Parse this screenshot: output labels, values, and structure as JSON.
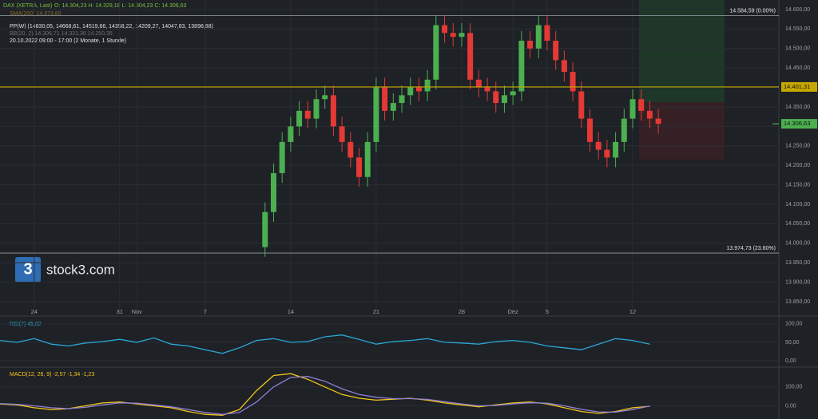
{
  "chart_data": [
    {
      "type": "candlestick",
      "title": "DAX (XETRA, Last)",
      "ohlc_label": "O: 14.304,23  H: 14.329,18  L: 14.304,23  C: 14.306,63",
      "indicators": [
        "SMA(200)  14.373,60",
        "PP(W)  (14830,05, 14668,61, 14519,66, 14358,22, 14209,27, 14047,83, 13898,88)",
        "BB(20, 2)  14.306,71  14.321,36  14.250,35",
        "20.10.2022 09:00 - 17:00  (2 Monate, 1 Stunde)"
      ],
      "watermark": "stock3.com",
      "up_color": "#4caf50",
      "down_color": "#e53935",
      "x": [
        13.5,
        14,
        14.5,
        15,
        15.5,
        16,
        16.5,
        17,
        17.5,
        18,
        18.5,
        19,
        19.5,
        20,
        20.5,
        21,
        21.5,
        22,
        22.5,
        23,
        23.5,
        24,
        24.5,
        25,
        25.5,
        26,
        26.5,
        27,
        27.5,
        28,
        28.5,
        29,
        29.5,
        30,
        30.5,
        31,
        31.5,
        32,
        32.5,
        33,
        33.5,
        34,
        34.5,
        35,
        35.5,
        36,
        36.5
      ],
      "open": [
        13990,
        14080,
        14180,
        14260,
        14300,
        14340,
        14320,
        14370,
        14380,
        14300,
        14260,
        14220,
        14170,
        14260,
        14400,
        14340,
        14360,
        14380,
        14400,
        14390,
        14420,
        14560,
        14540,
        14530,
        14540,
        14420,
        14400,
        14390,
        14360,
        14380,
        14390,
        14520,
        14500,
        14560,
        14520,
        14470,
        14440,
        14390,
        14320,
        14260,
        14240,
        14220,
        14260,
        14320,
        14370,
        14340,
        14320
      ],
      "high": [
        14105,
        14205,
        14285,
        14325,
        14365,
        14365,
        14395,
        14405,
        14405,
        14325,
        14285,
        14245,
        14285,
        14425,
        14425,
        14385,
        14405,
        14425,
        14425,
        14445,
        14585,
        14585,
        14565,
        14565,
        14565,
        14445,
        14425,
        14415,
        14405,
        14415,
        14545,
        14545,
        14585,
        14585,
        14545,
        14495,
        14465,
        14415,
        14345,
        14285,
        14265,
        14285,
        14345,
        14395,
        14395,
        14365,
        14345
      ],
      "low": [
        13965,
        14055,
        14155,
        14235,
        14275,
        14295,
        14295,
        14345,
        14275,
        14235,
        14195,
        14145,
        14145,
        14235,
        14315,
        14315,
        14335,
        14355,
        14365,
        14365,
        14395,
        14515,
        14505,
        14505,
        14395,
        14375,
        14365,
        14335,
        14335,
        14355,
        14365,
        14475,
        14475,
        14495,
        14445,
        14415,
        14365,
        14295,
        14235,
        14215,
        14195,
        14195,
        14235,
        14295,
        14315,
        14295,
        14281
      ],
      "close": [
        14080,
        14180,
        14260,
        14300,
        14340,
        14320,
        14370,
        14380,
        14300,
        14260,
        14220,
        14170,
        14260,
        14400,
        14340,
        14360,
        14380,
        14400,
        14390,
        14420,
        14560,
        14540,
        14530,
        14540,
        14420,
        14400,
        14390,
        14360,
        14380,
        14390,
        14520,
        14500,
        14560,
        14520,
        14470,
        14440,
        14390,
        14320,
        14260,
        14240,
        14220,
        14260,
        14320,
        14370,
        14340,
        14320,
        14306.63
      ],
      "xlim": [
        -2,
        43.55
      ],
      "ylim": [
        13815,
        14624.6
      ],
      "xticks": [
        {
          "value": 0,
          "label": "24"
        },
        {
          "value": 5,
          "label": "31"
        },
        {
          "value": 6,
          "label": "Nov"
        },
        {
          "value": 10,
          "label": "7"
        },
        {
          "value": 15,
          "label": "14"
        },
        {
          "value": 20,
          "label": "21"
        },
        {
          "value": 25,
          "label": "28"
        },
        {
          "value": 28,
          "label": "Dez"
        },
        {
          "value": 30,
          "label": "5"
        },
        {
          "value": 35,
          "label": "12"
        }
      ],
      "yticks": [
        {
          "value": 14600,
          "label": "14.600,00"
        },
        {
          "value": 14550,
          "label": "14.550,00"
        },
        {
          "value": 14500,
          "label": "14.500,00"
        },
        {
          "value": 14450,
          "label": "14.450,00"
        },
        {
          "value": 14400,
          "label": "14.400,00"
        },
        {
          "value": 14350,
          "label": "14.350,00"
        },
        {
          "value": 14300,
          "label": "14.300,00"
        },
        {
          "value": 14250,
          "label": "14.250,00"
        },
        {
          "value": 14200,
          "label": "14.200,00"
        },
        {
          "value": 14150,
          "label": "14.150,00"
        },
        {
          "value": 14100,
          "label": "14.100,00"
        },
        {
          "value": 14050,
          "label": "14.050,00"
        },
        {
          "value": 14000,
          "label": "14.000,00"
        },
        {
          "value": 13950,
          "label": "13.950,00"
        },
        {
          "value": 13900,
          "label": "13.900,00"
        },
        {
          "value": 13850,
          "label": "13.850,00"
        }
      ],
      "hlines": [
        {
          "value": 14584.59,
          "label": "14.584,59 (0.00%)"
        },
        {
          "value": 13974.73,
          "label": "13.974,73 (23.60%)"
        }
      ],
      "price_levels": [
        {
          "value": 14401.31,
          "label": "14.401,31",
          "color": "#c8a800"
        },
        {
          "value": 14306.63,
          "label": "14.306,63",
          "color": "#4caf50"
        }
      ]
    },
    {
      "type": "line",
      "title": "RSI(7)  45,02",
      "x": [
        -2,
        -1,
        0,
        1,
        2,
        3,
        4,
        5,
        6,
        7,
        8,
        9,
        10,
        11,
        12,
        13,
        14,
        15,
        16,
        17,
        18,
        19,
        20,
        21,
        22,
        23,
        24,
        25,
        26,
        27,
        28,
        29,
        30,
        31,
        32,
        33,
        34,
        35,
        36
      ],
      "series": [
        {
          "color": "#29a8d6",
          "values": [
            55,
            50,
            60,
            45,
            40,
            48,
            52,
            58,
            50,
            62,
            45,
            40,
            30,
            20,
            35,
            55,
            60,
            50,
            52,
            65,
            70,
            58,
            45,
            52,
            55,
            60,
            50,
            48,
            45,
            52,
            55,
            50,
            40,
            35,
            30,
            45,
            60,
            55,
            45.02
          ]
        }
      ],
      "xlim": [
        -2,
        43.55
      ],
      "ylim": [
        -13,
        117
      ],
      "yticks": [
        {
          "value": 100,
          "label": "100,00"
        },
        {
          "value": 50,
          "label": "50,00"
        },
        {
          "value": 0,
          "label": "0,00"
        }
      ]
    },
    {
      "type": "line",
      "title": "MACD(12, 26, 9)  -2,57  -1,34  -1,23",
      "x": [
        -2,
        -1,
        0,
        1,
        2,
        3,
        4,
        5,
        6,
        7,
        8,
        9,
        10,
        11,
        12,
        13,
        14,
        15,
        16,
        17,
        18,
        19,
        20,
        21,
        22,
        23,
        24,
        25,
        26,
        27,
        28,
        29,
        30,
        31,
        32,
        33,
        34,
        35,
        36
      ],
      "series": [
        {
          "color": "#f5c518",
          "values": [
            10,
            5,
            -10,
            -20,
            -15,
            0,
            15,
            20,
            10,
            0,
            -10,
            -30,
            -45,
            -50,
            -20,
            80,
            160,
            170,
            140,
            100,
            60,
            40,
            30,
            35,
            40,
            30,
            15,
            5,
            -5,
            5,
            15,
            20,
            10,
            -10,
            -30,
            -40,
            -30,
            -10,
            -2.57
          ]
        },
        {
          "color": "#8e7fd6",
          "values": [
            12,
            8,
            0,
            -10,
            -15,
            -8,
            5,
            15,
            14,
            5,
            -5,
            -20,
            -35,
            -45,
            -35,
            20,
            100,
            150,
            155,
            130,
            90,
            60,
            45,
            38,
            38,
            34,
            22,
            10,
            0,
            2,
            10,
            16,
            14,
            0,
            -18,
            -32,
            -33,
            -20,
            -1.34
          ]
        }
      ],
      "xlim": [
        -2,
        43.55
      ],
      "ylim": [
        -57,
        196
      ],
      "yticks": [
        {
          "value": 100,
          "label": "100,00"
        },
        {
          "value": 0,
          "label": "0,00"
        }
      ]
    }
  ]
}
